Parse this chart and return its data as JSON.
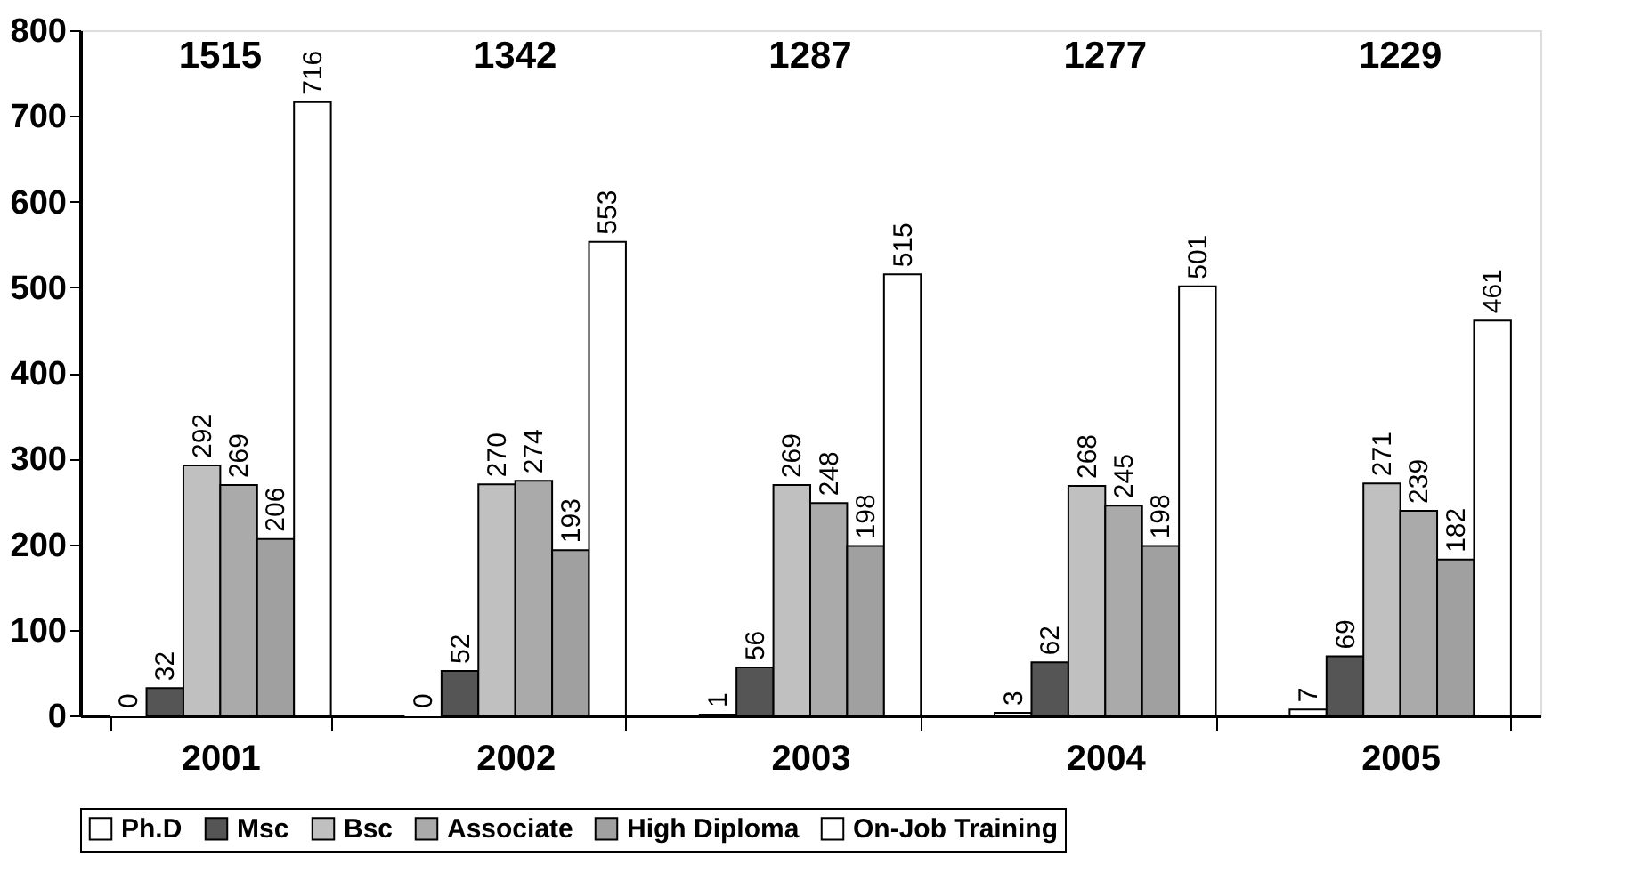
{
  "chart_data": {
    "type": "bar",
    "categories": [
      "2001",
      "2002",
      "2003",
      "2004",
      "2005"
    ],
    "series": [
      {
        "name": "Ph.D",
        "color": "#ffffff",
        "values": [
          0,
          0,
          1,
          3,
          7
        ]
      },
      {
        "name": "Msc",
        "color": "#555555",
        "values": [
          32,
          52,
          56,
          62,
          69
        ]
      },
      {
        "name": "Bsc",
        "color": "#c0c0c0",
        "values": [
          292,
          270,
          269,
          268,
          271
        ]
      },
      {
        "name": "Associate",
        "color": "#aaaaaa",
        "values": [
          269,
          274,
          248,
          245,
          239
        ]
      },
      {
        "name": "High Diploma",
        "color": "#a0a0a0",
        "values": [
          206,
          193,
          198,
          198,
          182
        ]
      },
      {
        "name": "On-Job Training",
        "color": "#ffffff",
        "values": [
          716,
          553,
          515,
          501,
          461
        ]
      }
    ],
    "annotations": [
      "1515",
      "1342",
      "1287",
      "1277",
      "1229"
    ],
    "ylim": [
      0,
      800
    ],
    "yticks": [
      0,
      100,
      200,
      300,
      400,
      500,
      600,
      700,
      800
    ],
    "data_labels": true,
    "grid": false,
    "legend": "bottom"
  }
}
